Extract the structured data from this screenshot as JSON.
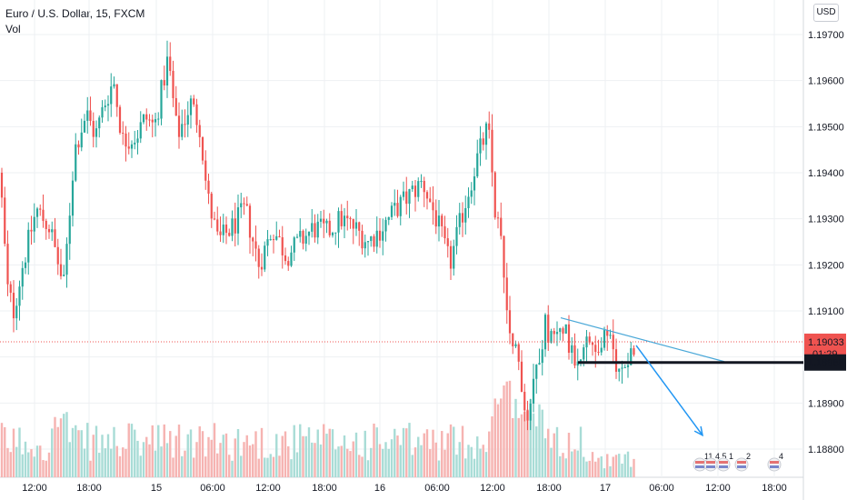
{
  "header": {
    "title": "Euro / U.S. Dollar, 15, FXCM",
    "indicator": "Vol"
  },
  "currency_button": "USD",
  "price_badges": {
    "last_price": "1.19033",
    "countdown": "01:29",
    "line_price": "1.18988"
  },
  "events": [
    "11",
    "4",
    "5",
    "1",
    "2",
    "4"
  ],
  "colors": {
    "up": "#26a69a",
    "down": "#ef5350",
    "vol_up": "#a8dcd6",
    "vol_down": "#f6b3b1",
    "trendline": "#4aa8d8",
    "arrow": "#2196f3",
    "support": "#131722",
    "last_price": "#ef5350"
  },
  "chart_data": {
    "type": "candlestick",
    "title": "Euro / U.S. Dollar, 15, FXCM",
    "y_axis": {
      "ticks": [
        "1.19700",
        "1.19600",
        "1.19500",
        "1.19400",
        "1.19300",
        "1.19200",
        "1.19100",
        "1.19000",
        "1.18900",
        "1.18800"
      ],
      "range": [
        1.1876,
        1.1981
      ]
    },
    "x_axis": {
      "ticks": [
        "12:00",
        "18:00",
        "15",
        "06:00",
        "12:00",
        "18:00",
        "16",
        "06:00",
        "12:00",
        "18:00",
        "17",
        "06:00",
        "12:00",
        "18:00"
      ]
    },
    "price_path": [
      [
        0,
        1.194
      ],
      [
        8,
        1.1915
      ],
      [
        15,
        1.191
      ],
      [
        25,
        1.192
      ],
      [
        40,
        1.1932
      ],
      [
        55,
        1.1928
      ],
      [
        70,
        1.1915
      ],
      [
        82,
        1.1945
      ],
      [
        95,
        1.1953
      ],
      [
        105,
        1.1948
      ],
      [
        115,
        1.1955
      ],
      [
        125,
        1.196
      ],
      [
        135,
        1.1947
      ],
      [
        150,
        1.1948
      ],
      [
        160,
        1.1952
      ],
      [
        170,
        1.195
      ],
      [
        185,
        1.1965
      ],
      [
        195,
        1.1948
      ],
      [
        210,
        1.1955
      ],
      [
        220,
        1.195
      ],
      [
        228,
        1.1935
      ],
      [
        240,
        1.1925
      ],
      [
        255,
        1.1928
      ],
      [
        270,
        1.1932
      ],
      [
        285,
        1.192
      ],
      [
        300,
        1.1928
      ],
      [
        315,
        1.1922
      ],
      [
        330,
        1.1925
      ],
      [
        345,
        1.1928
      ],
      [
        360,
        1.1927
      ],
      [
        375,
        1.193
      ],
      [
        390,
        1.1928
      ],
      [
        405,
        1.1925
      ],
      [
        420,
        1.1928
      ],
      [
        435,
        1.1932
      ],
      [
        450,
        1.1935
      ],
      [
        465,
        1.1938
      ],
      [
        480,
        1.193
      ],
      [
        495,
        1.192
      ],
      [
        510,
        1.1932
      ],
      [
        525,
        1.1943
      ],
      [
        537,
        1.195
      ],
      [
        545,
        1.1932
      ],
      [
        552,
        1.1925
      ],
      [
        560,
        1.1905
      ],
      [
        566,
        1.1905
      ],
      [
        572,
        1.1895
      ],
      [
        580,
        1.1887
      ],
      [
        590,
        1.1898
      ],
      [
        600,
        1.1907
      ],
      [
        610,
        1.1903
      ],
      [
        620,
        1.1908
      ],
      [
        630,
        1.19
      ],
      [
        640,
        1.1902
      ],
      [
        650,
        1.1903
      ],
      [
        660,
        1.1902
      ],
      [
        668,
        1.1905
      ],
      [
        675,
        1.19
      ],
      [
        682,
        1.1896
      ],
      [
        690,
        1.19
      ],
      [
        700,
        1.1903
      ]
    ],
    "annotations": {
      "trendline": {
        "from": [
          617,
          1.19085
        ],
        "to": [
          797,
          1.1899
        ]
      },
      "support_line": {
        "price": 1.18988,
        "from_x": 636
      },
      "arrow": {
        "from": [
          700,
          1.19025
        ],
        "to": [
          773,
          1.1883
        ]
      },
      "last_price_line": 1.19033
    }
  }
}
